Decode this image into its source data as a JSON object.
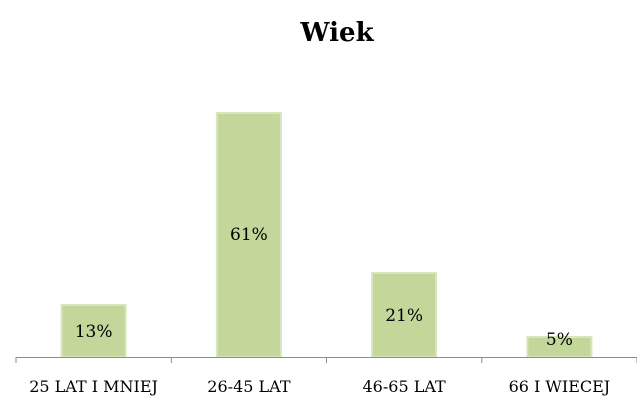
{
  "chart_data": {
    "type": "bar",
    "title": "Wiek",
    "categories": [
      "25 LAT I MNIEJ",
      "26-45 LAT",
      "46-65 LAT",
      "66 I WIECEJ"
    ],
    "values": [
      13,
      61,
      21,
      5
    ],
    "data_labels": [
      "13%",
      "61%",
      "21%",
      "5%"
    ],
    "ylim": [
      0,
      65
    ],
    "grid": false,
    "legend": "none",
    "colors": {
      "bar_fill": "#c4d79b",
      "bar_edge": "#d9e5bd",
      "axis": "#8c8c8c"
    }
  }
}
